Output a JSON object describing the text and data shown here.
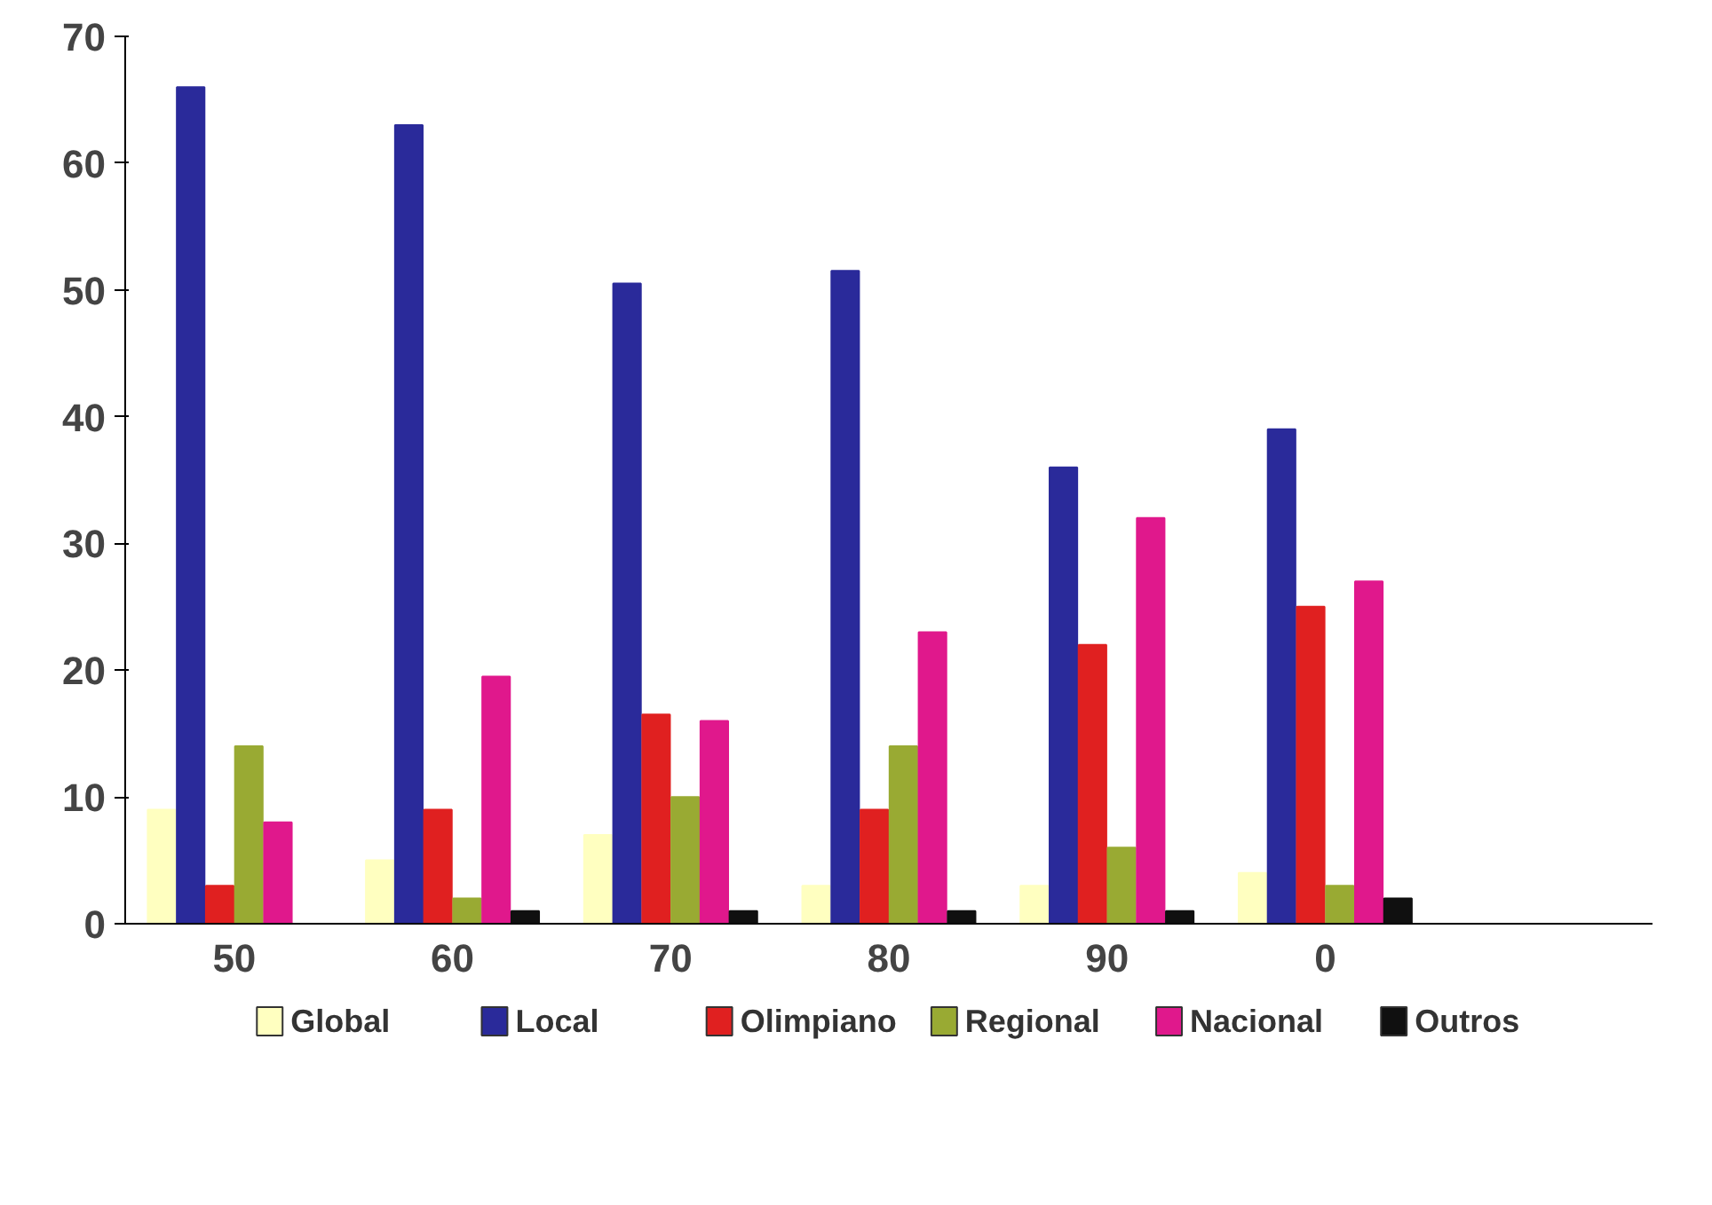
{
  "chart_data": {
    "type": "bar",
    "categories": [
      "50",
      "60",
      "70",
      "80",
      "90",
      "0",
      null
    ],
    "series": [
      {
        "name": "Global",
        "color": "#ffffc0",
        "values": [
          9,
          5,
          7,
          3,
          3,
          4,
          null
        ]
      },
      {
        "name": "Local",
        "color": "#2a2a9a",
        "values": [
          66,
          63,
          50.5,
          51.5,
          36,
          39,
          null
        ]
      },
      {
        "name": "Olimpiano",
        "color": "#e02020",
        "values": [
          3,
          9,
          16.5,
          9,
          22,
          25,
          null
        ]
      },
      {
        "name": "Regional",
        "color": "#99aa33",
        "values": [
          14,
          2,
          10,
          14,
          6,
          3,
          null
        ]
      },
      {
        "name": "Nacional",
        "color": "#e0188c",
        "values": [
          8,
          19.5,
          16,
          23,
          32,
          27,
          null
        ]
      },
      {
        "name": "Outros",
        "color": "#101010",
        "values": [
          0,
          1,
          1,
          1,
          1,
          2,
          null
        ]
      }
    ],
    "ylim": [
      0,
      70
    ],
    "yticks": [
      0,
      10,
      20,
      30,
      40,
      50,
      60,
      70
    ],
    "grid": false,
    "legend": "bottom"
  }
}
